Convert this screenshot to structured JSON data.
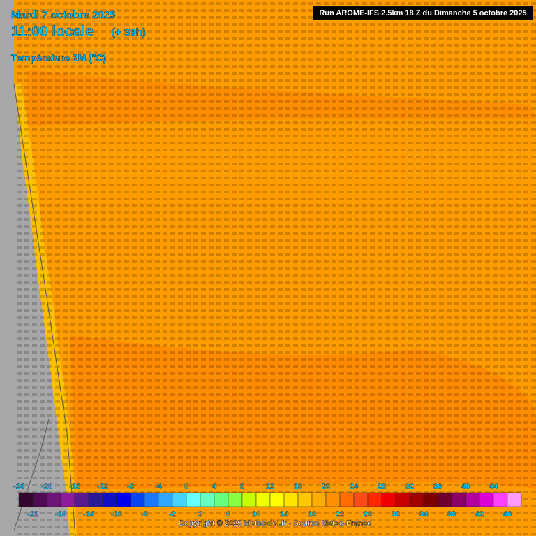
{
  "header": {
    "date": "Mardi 7 octobre 2025",
    "time": "11:00 locale",
    "lead": "(+ 39h)",
    "parameter": "Température 2M (°C)",
    "run": "Run AROME-IFS 2.5km 18 Z du Dimanche 5 octobre 2025"
  },
  "legend": {
    "upper_ticks": [
      -24,
      -20,
      -16,
      -12,
      -8,
      -4,
      0,
      4,
      8,
      12,
      16,
      20,
      24,
      28,
      32,
      36,
      40,
      44
    ],
    "lower_ticks": [
      -22,
      -18,
      -14,
      -10,
      -6,
      -2,
      2,
      6,
      10,
      14,
      18,
      22,
      26,
      30,
      34,
      38,
      42,
      46
    ],
    "range": [
      -24,
      48
    ],
    "colors": [
      "#32062e",
      "#4e0a52",
      "#6e1478",
      "#8c1c9c",
      "#5a1a8c",
      "#2a1a9a",
      "#1010c8",
      "#0000f0",
      "#0a46f0",
      "#1e78ff",
      "#30a8ff",
      "#46d4ff",
      "#66ffff",
      "#66ffc0",
      "#66ff80",
      "#88ff40",
      "#c8ff00",
      "#f0ff00",
      "#ffff00",
      "#ffe400",
      "#ffc800",
      "#ffac00",
      "#ff9000",
      "#ff6c00",
      "#ff4a1a",
      "#ff2800",
      "#f00000",
      "#c80000",
      "#a00000",
      "#7c0000",
      "#6e0030",
      "#8c0068",
      "#b4009c",
      "#dc00d2",
      "#ff40ff",
      "#ff9aff"
    ]
  },
  "footer": {
    "copyright": "Copyright © 2025 Meteociel.fr - Source Meteo-France"
  }
}
